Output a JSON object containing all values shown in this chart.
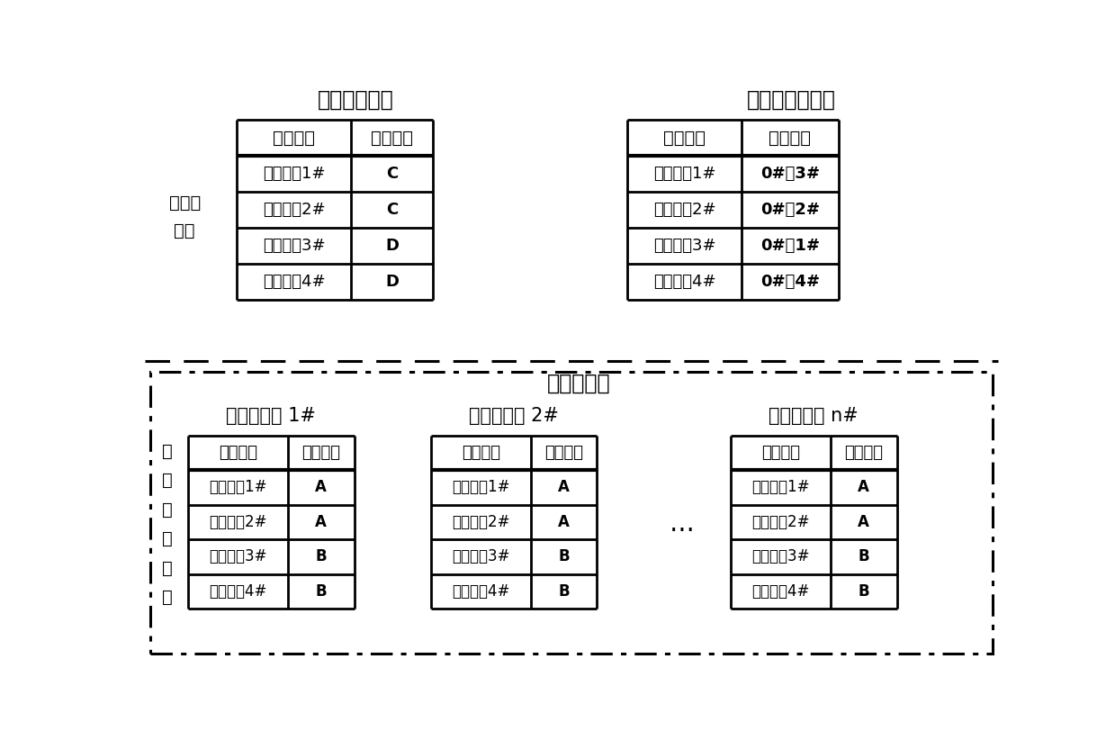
{
  "title_unused": "不常用指纹库",
  "title_backup": "全部指纹库备份",
  "title_network": "网络指纹库",
  "label_server": "服务器\n存储",
  "label_local": "本\n地\n节\n点\n存\n储",
  "unused_table": {
    "headers": [
      "指纹模板",
      "使用频度"
    ],
    "rows": [
      [
        "指纹模板1#",
        "C"
      ],
      [
        "指纹模板2#",
        "C"
      ],
      [
        "指纹模板3#",
        "D"
      ],
      [
        "指纹模板4#",
        "D"
      ]
    ]
  },
  "backup_table": {
    "headers": [
      "指纹模板",
      "存储位置"
    ],
    "rows": [
      [
        "指纹模板1#",
        "0#，3#"
      ],
      [
        "指纹模板2#",
        "0#，2#"
      ],
      [
        "指纹模板3#",
        "0#，1#"
      ],
      [
        "指纹模板4#",
        "0#，4#"
      ]
    ]
  },
  "local_tables": [
    {
      "title": "本地指纹库 1#",
      "headers": [
        "指纹模板",
        "使用频度"
      ],
      "rows": [
        [
          "指纹模板1#",
          "A"
        ],
        [
          "指纹模板2#",
          "A"
        ],
        [
          "指纹模板3#",
          "B"
        ],
        [
          "指纹模板4#",
          "B"
        ]
      ]
    },
    {
      "title": "本地指纹库 2#",
      "headers": [
        "指纹模板",
        "使用频度"
      ],
      "rows": [
        [
          "指纹模板1#",
          "A"
        ],
        [
          "指纹模板2#",
          "A"
        ],
        [
          "指纹模板3#",
          "B"
        ],
        [
          "指纹模板4#",
          "B"
        ]
      ]
    },
    {
      "title": "本地指纹库 n#",
      "headers": [
        "指纹模板",
        "使用频度"
      ],
      "rows": [
        [
          "指纹模板1#",
          "A"
        ],
        [
          "指纹模板2#",
          "A"
        ],
        [
          "指纹模板3#",
          "B"
        ],
        [
          "指纹模板4#",
          "B"
        ]
      ]
    }
  ],
  "dots_text": "…",
  "bg_color": "#ffffff",
  "line_color": "#000000"
}
